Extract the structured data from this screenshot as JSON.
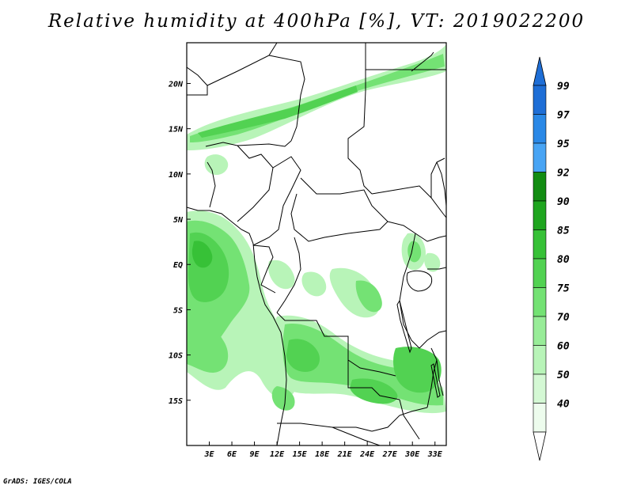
{
  "title": "Relative humidity at 400hPa [%], VT: 2019022200",
  "credit": "GrADS: IGES/COLA",
  "map": {
    "lon_range": [
      0,
      34.5
    ],
    "lat_range": [
      -20,
      24.5
    ],
    "lat_ticks": [
      "20N",
      "15N",
      "10N",
      "5N",
      "EQ",
      "5S",
      "10S",
      "15S"
    ],
    "lon_ticks": [
      "3E",
      "6E",
      "9E",
      "12E",
      "15E",
      "18E",
      "21E",
      "24E",
      "27E",
      "30E",
      "33E"
    ]
  },
  "colorbar": {
    "labels": [
      "99",
      "97",
      "95",
      "92",
      "90",
      "85",
      "80",
      "75",
      "70",
      "60",
      "50",
      "40"
    ],
    "colors": [
      "#1e6ed6",
      "#2a88e6",
      "#48a4f4",
      "#128c12",
      "#1fa51f",
      "#37c137",
      "#52d252",
      "#74e274",
      "#98ec98",
      "#b8f4b8",
      "#d4f8d4",
      "#edfced"
    ],
    "top_arrow_color": "#1e6ed6",
    "bottom_arrow_color": "#ffffff"
  }
}
